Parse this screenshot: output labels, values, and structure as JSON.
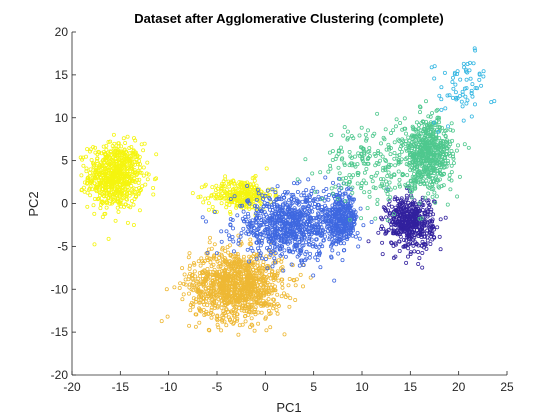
{
  "chart_data": {
    "type": "scatter",
    "title": "Dataset after Agglomerative Clustering (complete)",
    "xlabel": "PC1",
    "ylabel": "PC2",
    "xlim": [
      -20,
      25
    ],
    "ylim": [
      -20,
      20
    ],
    "xticks": [
      -20,
      -15,
      -10,
      -5,
      0,
      5,
      10,
      15,
      20,
      25
    ],
    "yticks": [
      -20,
      -15,
      -10,
      -5,
      0,
      5,
      10,
      15,
      20
    ],
    "xtick_labels": [
      "-20",
      "-15",
      "-10",
      "-5",
      "0",
      "5",
      "10",
      "15",
      "20",
      "25"
    ],
    "ytick_labels": [
      "-20",
      "-15",
      "-10",
      "-5",
      "0",
      "5",
      "10",
      "15",
      "20"
    ],
    "grid": false,
    "legend": "none",
    "marker": "open-circle",
    "series": [
      {
        "color": "#f5f50f",
        "clusters": [
          {
            "center": [
              -15.5,
              3.2
            ],
            "spread": [
              1.4,
              1.9
            ],
            "count": 700
          },
          {
            "center": [
              -2.5,
              1.0
            ],
            "spread": [
              1.6,
              0.9
            ],
            "count": 300
          }
        ]
      },
      {
        "color": "#eeb834",
        "clusters": [
          {
            "center": [
              -3.0,
              -9.5
            ],
            "spread": [
              2.4,
              2.0
            ],
            "count": 1100
          }
        ]
      },
      {
        "color": "#3f68e0",
        "clusters": [
          {
            "center": [
              2.5,
              -2.5
            ],
            "spread": [
              2.8,
              1.9
            ],
            "count": 800
          },
          {
            "center": [
              7.8,
              -1.8
            ],
            "spread": [
              0.9,
              1.4
            ],
            "count": 350
          }
        ]
      },
      {
        "color": "#32219e",
        "clusters": [
          {
            "center": [
              15.0,
              -2.2
            ],
            "spread": [
              1.2,
              1.5
            ],
            "count": 500
          }
        ]
      },
      {
        "color": "#4fc88e",
        "clusters": [
          {
            "center": [
              16.8,
              5.8
            ],
            "spread": [
              1.3,
              2.0
            ],
            "count": 600
          },
          {
            "center": [
              11.0,
              4.5
            ],
            "spread": [
              2.6,
              2.3
            ],
            "count": 220
          }
        ]
      },
      {
        "color": "#32b6e2",
        "clusters": [
          {
            "center": [
              20.5,
              13.5
            ],
            "spread": [
              1.5,
              2.2
            ],
            "count": 70
          }
        ]
      }
    ]
  }
}
